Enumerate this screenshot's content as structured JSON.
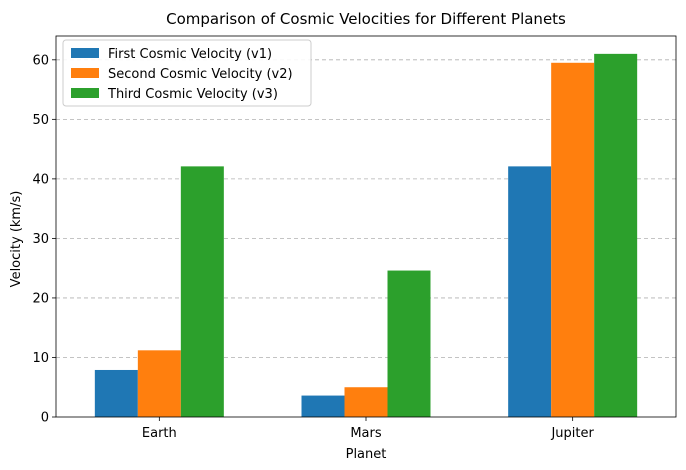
{
  "chart_data": {
    "type": "bar",
    "title": "Comparison of Cosmic Velocities for Different Planets",
    "xlabel": "Planet",
    "ylabel": "Velocity (km/s)",
    "categories": [
      "Earth",
      "Mars",
      "Jupiter"
    ],
    "series": [
      {
        "name": "First Cosmic Velocity (v1)",
        "color": "#1f77b4",
        "values": [
          7.9,
          3.6,
          42.1
        ]
      },
      {
        "name": "Second Cosmic Velocity (v2)",
        "color": "#ff7f0e",
        "values": [
          11.2,
          5.0,
          59.5
        ]
      },
      {
        "name": "Third Cosmic Velocity (v3)",
        "color": "#2ca02c",
        "values": [
          42.1,
          24.6,
          61.0
        ]
      }
    ],
    "ylim": [
      0,
      64
    ],
    "yticks": [
      0,
      10,
      20,
      30,
      40,
      50,
      60
    ],
    "grid": "y-dashed",
    "legend_position": "top-left"
  }
}
